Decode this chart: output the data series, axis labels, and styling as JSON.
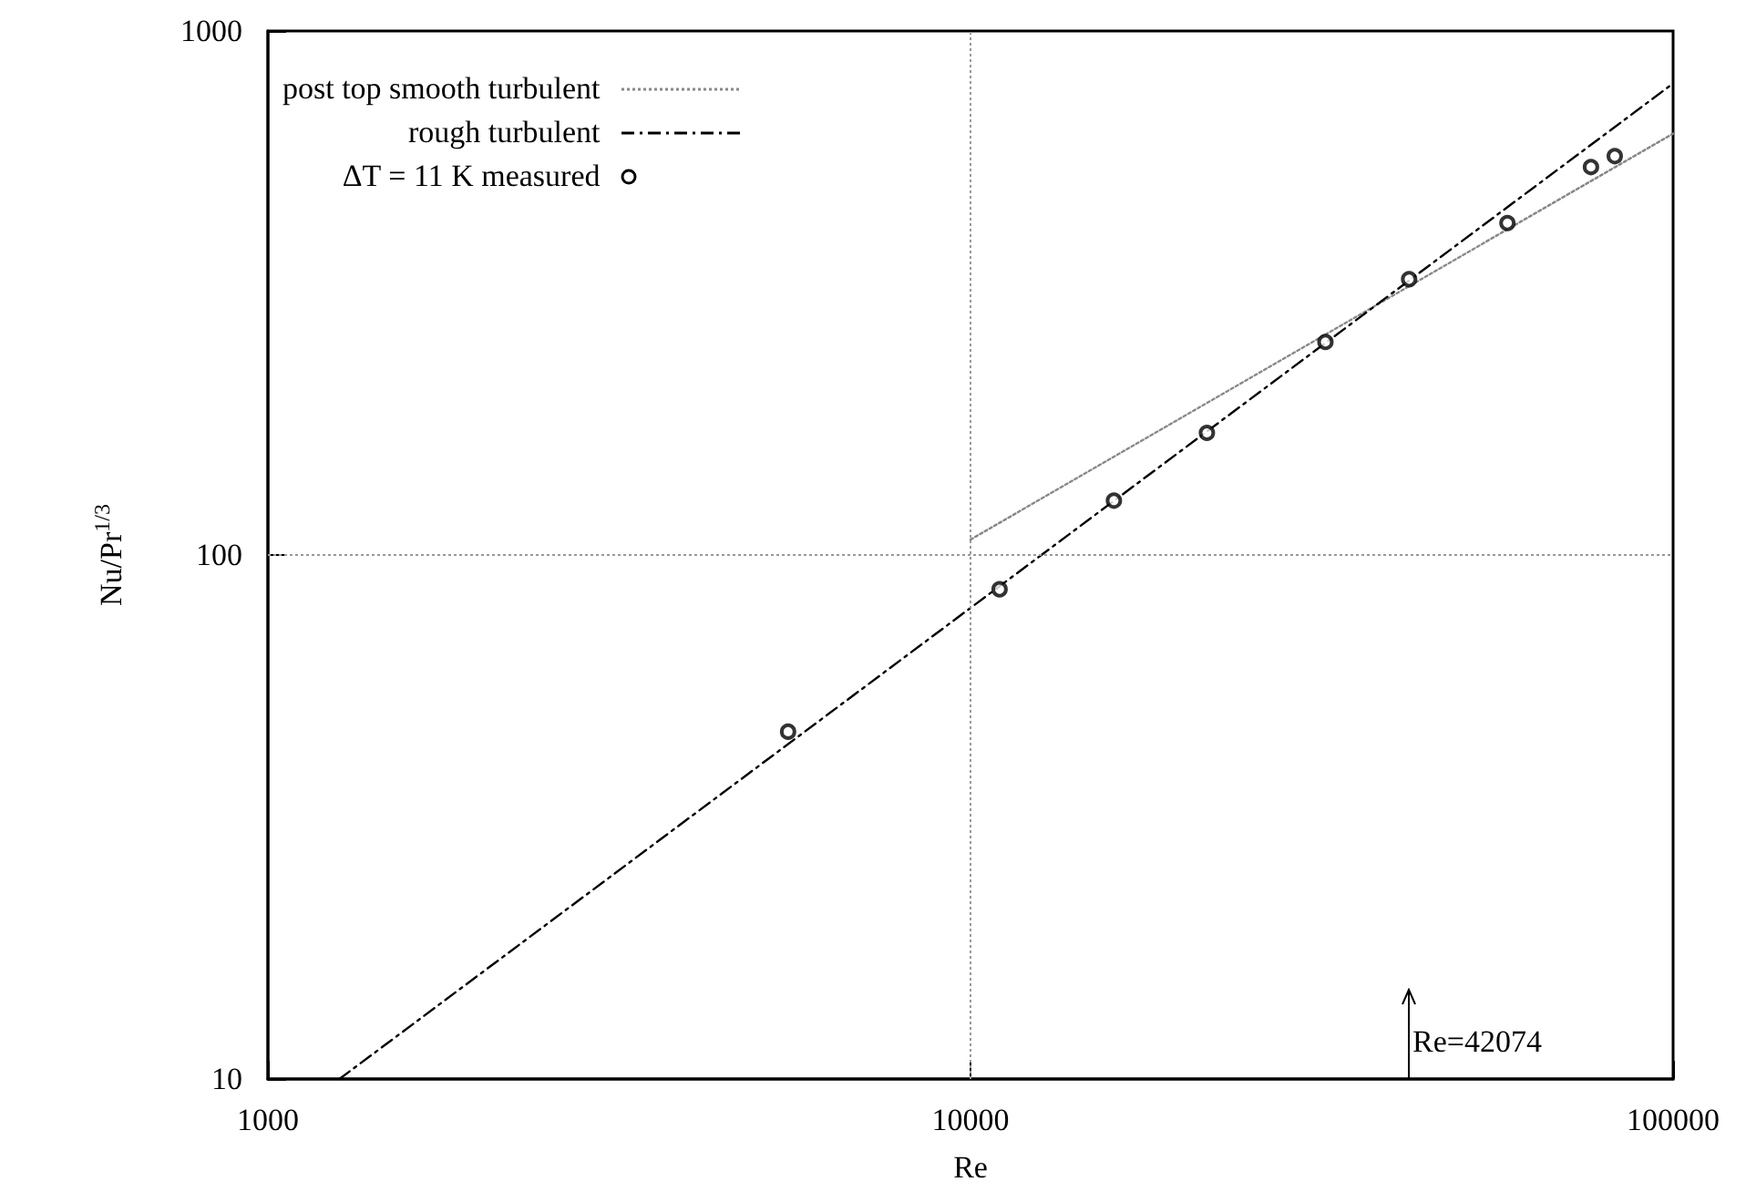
{
  "chart_data": {
    "type": "line",
    "xlabel": "Re",
    "ylabel": "Nu/Pr$^{1/3}$",
    "log": "xy",
    "xlim": [
      1000,
      100000
    ],
    "ylim": [
      10,
      1000
    ],
    "xticks": [
      1000,
      10000,
      100000
    ],
    "yticks": [
      10,
      100,
      1000
    ],
    "grid": true,
    "legend": "top left",
    "series": [
      {
        "name": "post top smooth turbulent",
        "color": "#888888",
        "line_style": "dotted",
        "marker": "none",
        "x": [
          10000,
          100000
        ],
        "values": [
          107,
          637
        ]
      },
      {
        "name": "rough turbulent",
        "color": "#000000",
        "line_style": "dashed",
        "marker": "none",
        "x": [
          1264,
          100000
        ],
        "values": [
          10,
          794
        ]
      },
      {
        "name": "ΔT = 11 K measured",
        "type": "scatter",
        "color": "#000000",
        "marker": "circle",
        "x": [
          5500,
          11000,
          16000,
          21700,
          32000,
          42100,
          58100,
          76400,
          82600
        ],
        "values": [
          46,
          86,
          127,
          171,
          255,
          336,
          430,
          550,
          577
        ]
      }
    ],
    "ref_lines": [
      {
        "axis": "x",
        "value": 42074,
        "label": "Re=42074"
      }
    ]
  }
}
